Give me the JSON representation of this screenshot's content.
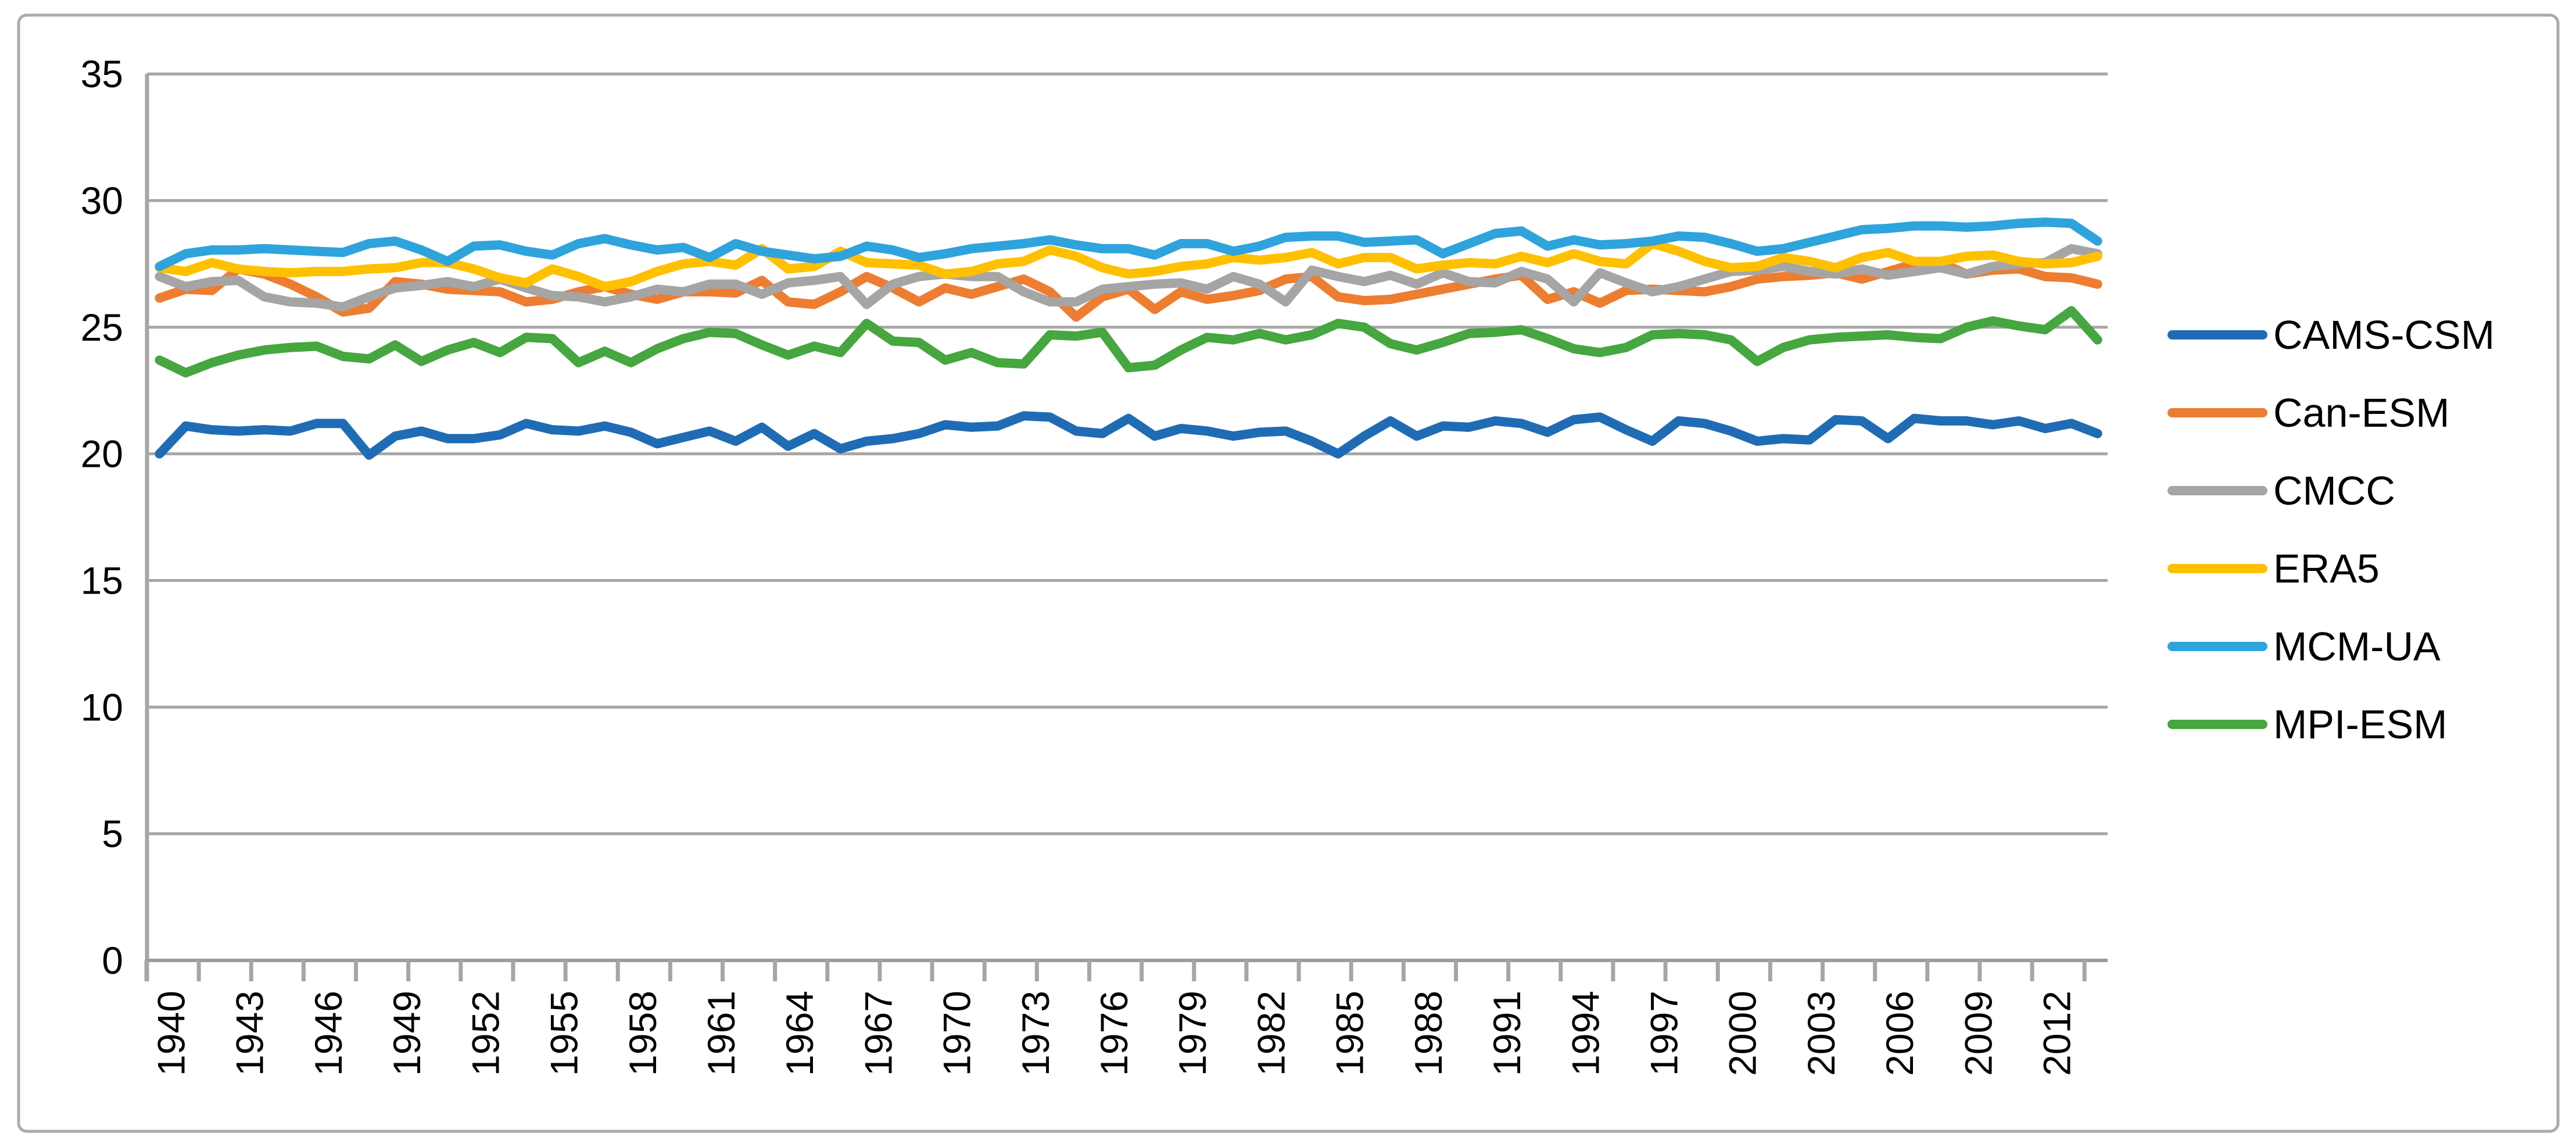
{
  "chart_data": {
    "type": "line",
    "title": "",
    "x_start": 1940,
    "x_end": 2014,
    "x_label_years": [
      1940,
      1943,
      1946,
      1949,
      1952,
      1955,
      1958,
      1961,
      1964,
      1967,
      1970,
      1973,
      1976,
      1979,
      1982,
      1985,
      1988,
      1991,
      1994,
      1997,
      2000,
      2003,
      2006,
      2009,
      2012
    ],
    "x_tick_interval_years": 2,
    "y_ticks": [
      0,
      5,
      10,
      15,
      20,
      25,
      30,
      35
    ],
    "ylim": [
      0,
      35
    ],
    "grid": "horizontal",
    "legend_position": "right",
    "axis_color": "#A6A6A6",
    "text_color": "#000000",
    "series": [
      {
        "name": "CAMS-CSM",
        "color": "#1F6CB5",
        "values": [
          20.0,
          21.1,
          20.95,
          20.9,
          20.95,
          20.9,
          21.2,
          21.2,
          19.95,
          20.7,
          20.9,
          20.6,
          20.6,
          20.75,
          21.2,
          20.95,
          20.9,
          21.1,
          20.85,
          20.4,
          20.65,
          20.9,
          20.5,
          21.05,
          20.3,
          20.8,
          20.2,
          20.5,
          20.6,
          20.8,
          21.15,
          21.05,
          21.1,
          21.5,
          21.45,
          20.9,
          20.8,
          21.4,
          20.7,
          21.0,
          20.9,
          20.7,
          20.85,
          20.9,
          20.5,
          20.0,
          20.7,
          21.3,
          20.7,
          21.1,
          21.05,
          21.3,
          21.2,
          20.85,
          21.35,
          21.45,
          20.95,
          20.5,
          21.3,
          21.2,
          20.9,
          20.5,
          20.6,
          20.55,
          21.35,
          21.3,
          20.6,
          21.4,
          21.3,
          21.3,
          21.15,
          21.3,
          21.0,
          21.2,
          20.8
        ]
      },
      {
        "name": "Can-ESM",
        "color": "#ED7D31",
        "values": [
          26.15,
          26.5,
          26.45,
          27.3,
          27.1,
          26.7,
          26.2,
          25.6,
          25.75,
          26.8,
          26.7,
          26.5,
          26.45,
          26.4,
          26.0,
          26.1,
          26.4,
          26.6,
          26.3,
          26.1,
          26.4,
          26.4,
          26.35,
          26.85,
          26.0,
          25.9,
          26.4,
          27.0,
          26.55,
          26.0,
          26.55,
          26.3,
          26.6,
          26.9,
          26.4,
          25.4,
          26.2,
          26.5,
          25.7,
          26.4,
          26.1,
          26.25,
          26.45,
          26.9,
          27.0,
          26.2,
          26.05,
          26.1,
          26.3,
          26.5,
          26.7,
          26.9,
          27.05,
          26.1,
          26.4,
          25.95,
          26.45,
          26.5,
          26.45,
          26.4,
          26.6,
          26.9,
          27.0,
          27.05,
          27.15,
          26.9,
          27.2,
          27.5,
          27.55,
          27.1,
          27.25,
          27.3,
          27.0,
          26.95,
          26.7
        ]
      },
      {
        "name": "CMCC",
        "color": "#A5A5A5",
        "values": [
          27.0,
          26.6,
          26.8,
          26.85,
          26.2,
          26.0,
          25.95,
          25.8,
          26.2,
          26.55,
          26.65,
          26.8,
          26.6,
          26.9,
          26.55,
          26.25,
          26.2,
          26.0,
          26.2,
          26.5,
          26.4,
          26.7,
          26.7,
          26.3,
          26.75,
          26.85,
          27.0,
          25.9,
          26.7,
          27.0,
          27.1,
          27.0,
          27.0,
          26.4,
          26.0,
          26.0,
          26.5,
          26.6,
          26.7,
          26.75,
          26.5,
          27.0,
          26.7,
          26.0,
          27.25,
          27.0,
          26.8,
          27.05,
          26.7,
          27.15,
          26.8,
          26.75,
          27.2,
          26.9,
          26.0,
          27.15,
          26.75,
          26.4,
          26.6,
          26.9,
          27.2,
          27.25,
          27.4,
          27.2,
          27.1,
          27.3,
          27.05,
          27.2,
          27.35,
          27.1,
          27.4,
          27.5,
          27.55,
          28.1,
          27.9
        ]
      },
      {
        "name": "ERA5",
        "color": "#FFC000",
        "values": [
          27.35,
          27.2,
          27.55,
          27.3,
          27.2,
          27.15,
          27.2,
          27.2,
          27.3,
          27.35,
          27.55,
          27.55,
          27.3,
          26.95,
          26.75,
          27.3,
          27.0,
          26.6,
          26.8,
          27.2,
          27.5,
          27.6,
          27.45,
          28.1,
          27.3,
          27.4,
          28.0,
          27.55,
          27.5,
          27.45,
          27.1,
          27.2,
          27.5,
          27.6,
          28.05,
          27.8,
          27.35,
          27.1,
          27.2,
          27.4,
          27.5,
          27.75,
          27.65,
          27.75,
          27.95,
          27.5,
          27.75,
          27.75,
          27.3,
          27.45,
          27.55,
          27.5,
          27.8,
          27.55,
          27.9,
          27.6,
          27.5,
          28.3,
          28.0,
          27.6,
          27.35,
          27.4,
          27.75,
          27.6,
          27.35,
          27.75,
          27.95,
          27.6,
          27.6,
          27.8,
          27.85,
          27.6,
          27.5,
          27.55,
          27.8
        ]
      },
      {
        "name": "MCM-UA",
        "color": "#2FA3DC",
        "values": [
          27.4,
          27.9,
          28.05,
          28.05,
          28.1,
          28.05,
          28.0,
          27.95,
          28.3,
          28.4,
          28.05,
          27.6,
          28.2,
          28.25,
          28.0,
          27.85,
          28.3,
          28.5,
          28.25,
          28.05,
          28.15,
          27.75,
          28.3,
          28.0,
          27.85,
          27.7,
          27.8,
          28.2,
          28.05,
          27.75,
          27.9,
          28.1,
          28.2,
          28.3,
          28.45,
          28.25,
          28.1,
          28.1,
          27.85,
          28.3,
          28.3,
          28.0,
          28.2,
          28.55,
          28.6,
          28.6,
          28.35,
          28.4,
          28.45,
          27.9,
          28.3,
          28.7,
          28.8,
          28.2,
          28.45,
          28.25,
          28.3,
          28.4,
          28.6,
          28.55,
          28.3,
          28.0,
          28.1,
          28.35,
          28.6,
          28.85,
          28.9,
          29.0,
          29.0,
          28.95,
          29.0,
          29.1,
          29.15,
          29.1,
          28.4
        ]
      },
      {
        "name": "MPI-ESM",
        "color": "#46A63F",
        "values": [
          23.7,
          23.2,
          23.6,
          23.9,
          24.1,
          24.2,
          24.25,
          23.85,
          23.75,
          24.3,
          23.65,
          24.1,
          24.4,
          24.0,
          24.6,
          24.55,
          23.6,
          24.05,
          23.6,
          24.15,
          24.55,
          24.8,
          24.75,
          24.3,
          23.9,
          24.25,
          24.0,
          25.15,
          24.45,
          24.4,
          23.7,
          24.0,
          23.6,
          23.55,
          24.7,
          24.65,
          24.8,
          23.4,
          23.5,
          24.1,
          24.6,
          24.5,
          24.75,
          24.5,
          24.7,
          25.15,
          25.0,
          24.35,
          24.1,
          24.4,
          24.75,
          24.8,
          24.9,
          24.55,
          24.15,
          24.0,
          24.2,
          24.7,
          24.75,
          24.7,
          24.5,
          23.65,
          24.2,
          24.5,
          24.6,
          24.65,
          24.7,
          24.6,
          24.55,
          25.0,
          25.25,
          25.05,
          24.9,
          25.65,
          24.5
        ]
      }
    ]
  }
}
